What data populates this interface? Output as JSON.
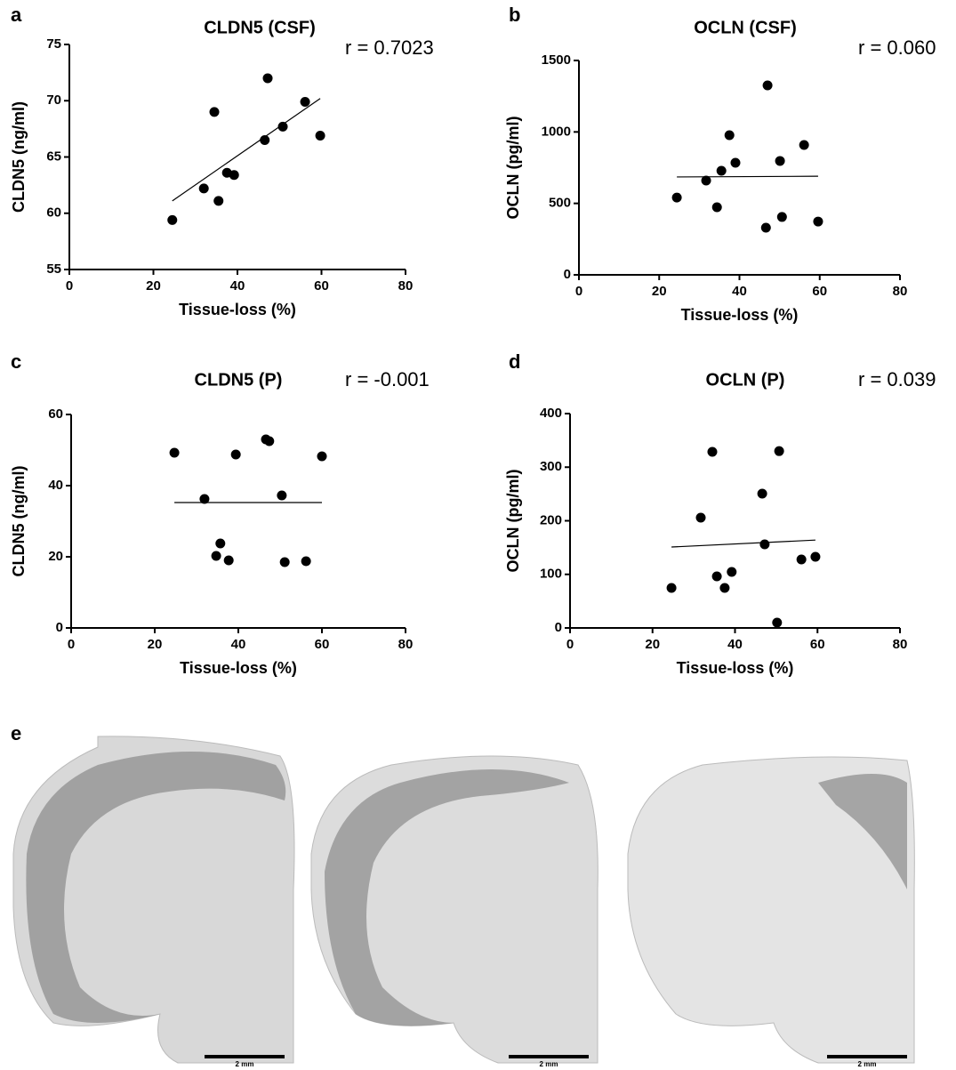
{
  "chart_data": [
    {
      "type": "scatter",
      "panel": "a",
      "title": "CLDN5  (CSF)",
      "annotation": "r = 0.7023",
      "x_label": "Tissue-loss (%)",
      "y_label": "CLDN5 (ng/ml)",
      "color": "#000000",
      "x": [
        24.5,
        32,
        34.5,
        35.5,
        37.5,
        39.2,
        46.5,
        47.2,
        50.8,
        56.1,
        59.7
      ],
      "y": [
        59.4,
        62.2,
        69,
        61.1,
        63.6,
        63.4,
        66.5,
        72,
        67.7,
        69.9,
        66.9
      ],
      "fit": {
        "x": [
          24.5,
          59.7
        ],
        "y": [
          61.1,
          70.2
        ]
      },
      "xlim": [
        0,
        80
      ],
      "xticks": [
        0,
        20,
        40,
        60,
        80
      ],
      "ylim": [
        55,
        75
      ],
      "yticks": [
        55,
        60,
        65,
        70,
        75
      ]
    },
    {
      "type": "scatter",
      "panel": "b",
      "title": "OCLN (CSF)",
      "annotation": "r = 0.060",
      "x_label": "Tissue-loss (%)",
      "y_label": "OCLN (pg/ml)",
      "color": "#000000",
      "x": [
        24.4,
        31.7,
        34.4,
        35.5,
        37.5,
        39,
        46.6,
        47,
        50.1,
        50.6,
        56.1,
        59.6
      ],
      "y": [
        541,
        660,
        473,
        728,
        977,
        784,
        330,
        1326,
        797,
        405,
        909,
        373
      ],
      "fit": {
        "x": [
          24.4,
          59.6
        ],
        "y": [
          685,
          690
        ]
      },
      "xlim": [
        0,
        80
      ],
      "xticks": [
        0,
        20,
        40,
        60,
        80
      ],
      "ylim": [
        0,
        1500
      ],
      "yticks": [
        0,
        500,
        1000,
        1500
      ]
    },
    {
      "type": "scatter",
      "panel": "c",
      "title": "CLDN5 (P)",
      "annotation": "r = -0.001",
      "x_label": "Tissue-loss (%)",
      "y_label": "CLDN5 (ng/ml)",
      "color": "#000000",
      "x": [
        24.7,
        31.9,
        39.4,
        34.7,
        35.7,
        37.7,
        46.6,
        47.4,
        50.4,
        51.1,
        56.2,
        60
      ],
      "y": [
        49.25,
        36.25,
        48.75,
        20.25,
        23.75,
        19,
        53,
        52.5,
        37.25,
        18.5,
        18.75,
        48.25
      ],
      "fit": {
        "x": [
          24.7,
          60
        ],
        "y": [
          35.25,
          35.25
        ]
      },
      "xlim": [
        0,
        80
      ],
      "xticks": [
        0,
        20,
        40,
        60,
        80
      ],
      "ylim": [
        0,
        60
      ],
      "yticks": [
        0,
        20,
        40,
        60
      ]
    },
    {
      "type": "scatter",
      "panel": "d",
      "title": "OCLN (P)",
      "annotation": "r = 0.039",
      "x_label": "Tissue-loss (%)",
      "y_label": "OCLN (pg/ml)",
      "color": "#000000",
      "x": [
        24.6,
        31.7,
        34.5,
        35.6,
        37.5,
        39.2,
        46.6,
        47.2,
        50.2,
        50.7,
        56.1,
        59.5
      ],
      "y": [
        74.7,
        205.8,
        328.6,
        96.3,
        74.7,
        104.6,
        250.6,
        156,
        10,
        330,
        127.8,
        132.8
      ],
      "fit": {
        "x": [
          24.6,
          59.5
        ],
        "y": [
          151,
          164
        ]
      },
      "xlim": [
        0,
        80
      ],
      "xticks": [
        0,
        20,
        40,
        60,
        80
      ],
      "ylim": [
        0,
        400
      ],
      "yticks": [
        0,
        100,
        200,
        300,
        400
      ]
    }
  ],
  "panel_e": {
    "label": "e",
    "scale_bars": [
      "2 mm",
      "2 mm",
      "2 mm"
    ]
  }
}
